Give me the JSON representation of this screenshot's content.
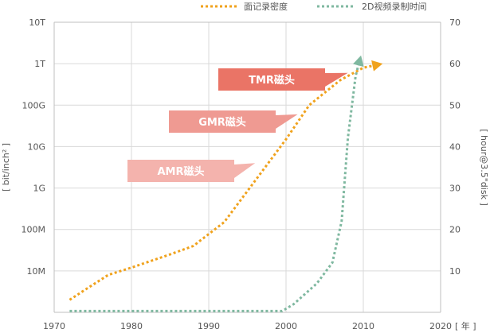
{
  "chart_data": {
    "type": "line",
    "legend": {
      "placement": "top-right"
    },
    "grid": true,
    "x_axis": {
      "range": [
        1970,
        2020
      ],
      "ticks": [
        "1970",
        "1980",
        "1990",
        "2000",
        "2010",
        "2020"
      ],
      "unit_label": "[ 年 ]"
    },
    "y_left": {
      "label": "[ bit/inch² ]",
      "scale": "log",
      "ticks": [
        "10M",
        "100M",
        "1G",
        "10G",
        "100G",
        "1T",
        "10T"
      ],
      "values": [
        10000000.0,
        100000000.0,
        1000000000.0,
        10000000000.0,
        100000000000.0,
        1000000000000.0,
        10000000000000.0
      ]
    },
    "y_right": {
      "label": "[ hour@3.5\"disk ]",
      "range": [
        0,
        70
      ],
      "ticks": [
        "10",
        "20",
        "30",
        "40",
        "50",
        "60",
        "70"
      ]
    },
    "series": [
      {
        "name": "面记录密度",
        "axis": "left",
        "color": "#f0a21c",
        "x": [
          1972,
          1974,
          1977,
          1980,
          1985,
          1988,
          1992,
          1996,
          2000,
          2003,
          2005,
          2007,
          2010,
          2012.5
        ],
        "y": [
          2000000.0,
          3500000.0,
          8000000.0,
          12000000.0,
          25000000.0,
          40000000.0,
          150000000.0,
          1500000000.0,
          15000000000.0,
          100000000000.0,
          200000000000.0,
          400000000000.0,
          800000000000.0,
          1000000000000.0
        ]
      },
      {
        "name": "2D视频录制时间",
        "axis": "right",
        "color": "#7fb8a0",
        "x": [
          1972,
          1980,
          1990,
          1999.5,
          2001,
          2004,
          2006,
          2007.2,
          2008,
          2009,
          2009.7
        ],
        "y": [
          0.3,
          0.3,
          0.3,
          0.3,
          2,
          7,
          12,
          22,
          42,
          57,
          62
        ]
      }
    ],
    "annotations": [
      {
        "text": "TMR磁头",
        "color": "#ea7466",
        "target_x": 2008,
        "target_y": 600000000000.0
      },
      {
        "text": "GMR磁头",
        "color": "#ef9a92",
        "target_x": 2001.5,
        "target_y": 60000000000.0
      },
      {
        "text": "AMR磁头",
        "color": "#f4b3ad",
        "target_x": 1996,
        "target_y": 4000000000.0
      }
    ]
  }
}
